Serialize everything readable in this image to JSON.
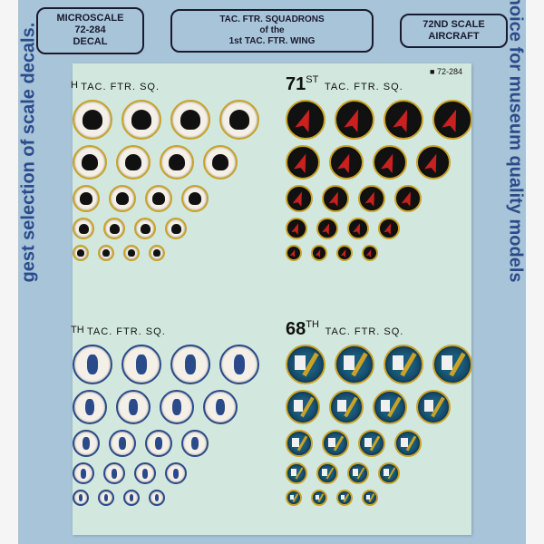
{
  "header": {
    "left_line1": "MICROSCALE",
    "left_line2": "72-284",
    "left_line3": "DECAL",
    "center_line1": "TAC. FTR. SQUADRONS",
    "center_line2": "of the",
    "center_line3": "1st TAC. FTR. WING",
    "right_line1": "72ND SCALE",
    "right_line2": "AIRCRAFT"
  },
  "side_left": "gest selection of scale decals.",
  "side_right": "choice for museum quality models",
  "part_number": "72-284",
  "squadrons": {
    "a": {
      "suffix": "H",
      "text": "TAC. FTR. SQ."
    },
    "b": {
      "num": "71",
      "ord": "ST",
      "text": "TAC. FTR. SQ."
    },
    "c": {
      "suffix": "TH",
      "text": "TAC. FTR. SQ."
    },
    "d": {
      "num": "68",
      "ord": "TH",
      "text": "TAC. FTR. SQ."
    }
  },
  "emblem_sizes": [
    40,
    34,
    26,
    20,
    14
  ],
  "colors": {
    "page_bg": "#a8c4d9",
    "sheet_bg": "#d2e8df",
    "border": "#1a1a2e",
    "side_text": "#2a4a8a"
  }
}
